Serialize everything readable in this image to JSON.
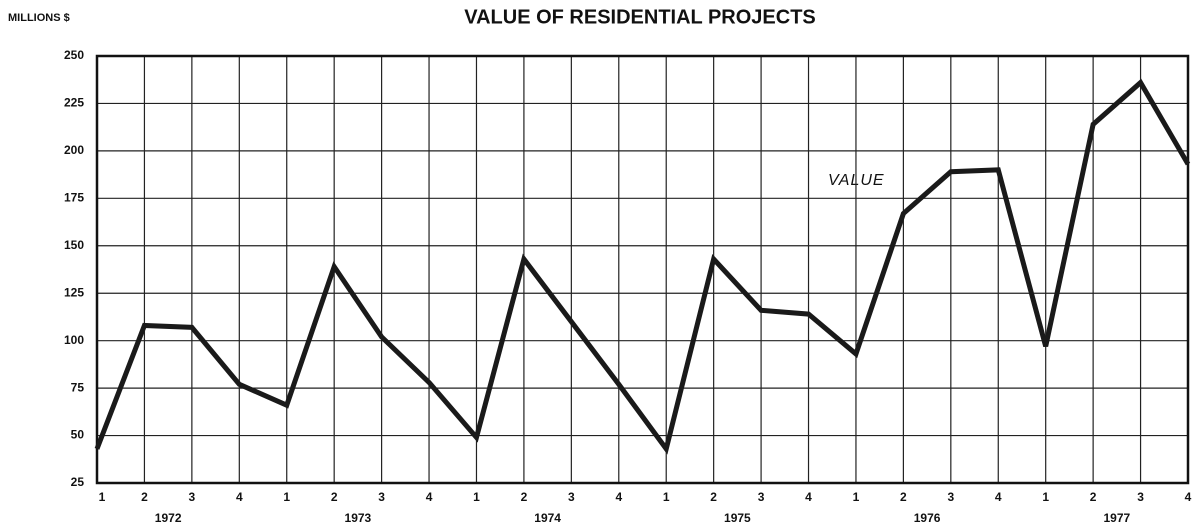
{
  "chart_data": {
    "type": "line",
    "title": "VALUE OF RESIDENTIAL PROJECTS",
    "y_label": "MILLIONS $",
    "annotation": "VALUE",
    "categories": [
      "1",
      "2",
      "3",
      "4",
      "1",
      "2",
      "3",
      "4",
      "1",
      "2",
      "3",
      "4",
      "1",
      "2",
      "3",
      "4",
      "1",
      "2",
      "3",
      "4",
      "1",
      "2",
      "3",
      "4"
    ],
    "years": [
      "1972",
      "1973",
      "1974",
      "1975",
      "1976",
      "1977"
    ],
    "series": [
      {
        "name": "VALUE",
        "color": "#1a1a1a",
        "values": [
          43,
          108,
          107,
          77,
          66,
          139,
          102,
          78,
          49,
          143,
          110,
          77,
          43,
          143,
          116,
          114,
          93,
          167,
          189,
          190,
          97,
          214,
          236,
          193
        ]
      }
    ],
    "ylim": [
      25,
      250
    ],
    "yticks": [
      25,
      50,
      75,
      100,
      125,
      150,
      175,
      200,
      225,
      250
    ],
    "grid": true
  }
}
